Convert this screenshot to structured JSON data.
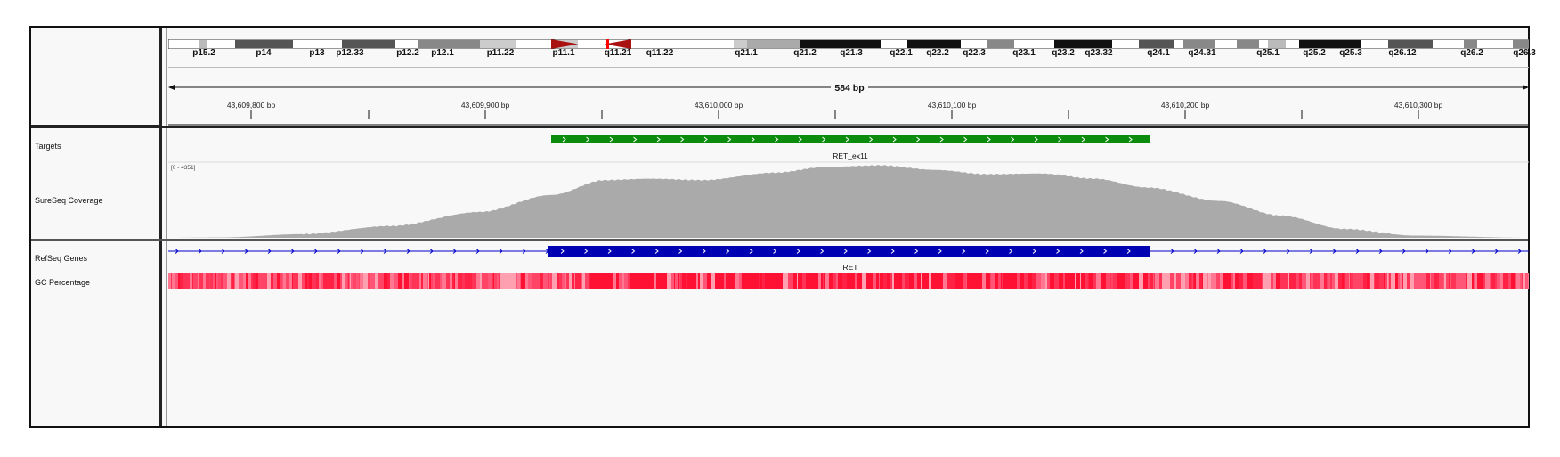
{
  "ideogram": {
    "bands": [
      "p15.2",
      "p14",
      "p13",
      "p12.33",
      "p12.2",
      "p12.1",
      "p11.22",
      "p11.1",
      "q11.21",
      "q11.22",
      "q21.1",
      "q21.2",
      "q21.3",
      "q22.1",
      "q22.2",
      "q22.3",
      "q23.1",
      "q23.2",
      "q23.32",
      "q24.1",
      "q24.31",
      "q25.1",
      "q25.2",
      "q25.3",
      "q26.12",
      "q26.2",
      "q26.3"
    ]
  },
  "ruler": {
    "span_label": "584 bp",
    "ticks": [
      "43,609,800 bp",
      "43,609,900 bp",
      "43,610,000 bp",
      "43,610,100 bp",
      "43,610,200 bp",
      "43,610,300 bp"
    ]
  },
  "tracks": {
    "targets": {
      "name": "Targets",
      "feature_label": "RET_ex11",
      "color": "#0c8c0c"
    },
    "coverage": {
      "name": "SureSeq Coverage",
      "range_label": "[0 - 4351]",
      "color": "#aaaaaa"
    },
    "refseq": {
      "name": "RefSeq Genes",
      "feature_label": "RET",
      "color": "#0000b3"
    },
    "gc": {
      "name": "GC Percentage",
      "color": "#ff3355"
    }
  }
}
